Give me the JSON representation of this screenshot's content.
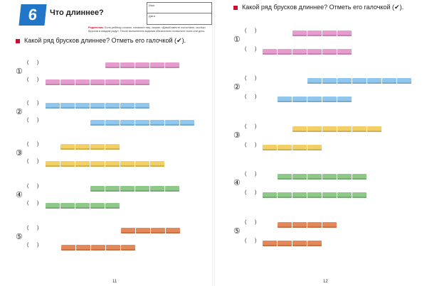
{
  "lesson": {
    "number": "6",
    "title": "Что длиннее?"
  },
  "name_box": {
    "name_label": "Имя",
    "date_label": "Дата"
  },
  "parent_note": {
    "label": "Родителям.",
    "text": "Если ребёнку сложно, покажите ему, сказав: «Давай вместе посчитаем, сколько брусков в каждом ряду». После выполнения задания обязательно похвалите сына или дочь."
  },
  "instruction": "Какой ряд брусков длиннее? Отметь его галочкой (✔).",
  "paren": "(      )",
  "colors": {
    "pink": "#e79ccf",
    "blue": "#8fc7ef",
    "yellow": "#f3cf66",
    "green": "#8fc98a",
    "orange": "#e4885a",
    "accent_red": "#c8102e",
    "badge_blue": "#2176c7"
  },
  "left_page": {
    "page_number": "11",
    "questions": [
      {
        "number": "①",
        "color": "pink",
        "top_bricks": 5,
        "bottom_bricks": 7
      },
      {
        "number": "②",
        "color": "blue",
        "top_bricks": 7,
        "bottom_bricks": 7
      },
      {
        "number": "③",
        "color": "yellow",
        "top_bricks": 4,
        "bottom_bricks": 8
      },
      {
        "number": "④",
        "color": "green",
        "top_bricks": 6,
        "bottom_bricks": 5
      },
      {
        "number": "⑤",
        "color": "orange",
        "top_bricks": 4,
        "bottom_bricks": 5
      }
    ]
  },
  "right_page": {
    "page_number": "12",
    "questions": [
      {
        "number": "①",
        "color": "pink",
        "top_bricks": 4,
        "bottom_bricks": 6
      },
      {
        "number": "②",
        "color": "blue",
        "top_bricks": 7,
        "bottom_bricks": 5
      },
      {
        "number": "③",
        "color": "yellow",
        "top_bricks": 6,
        "bottom_bricks": 4
      },
      {
        "number": "④",
        "color": "green",
        "top_bricks": 6,
        "bottom_bricks": 7
      },
      {
        "number": "⑤",
        "color": "orange",
        "top_bricks": 4,
        "bottom_bricks": 4
      }
    ]
  }
}
